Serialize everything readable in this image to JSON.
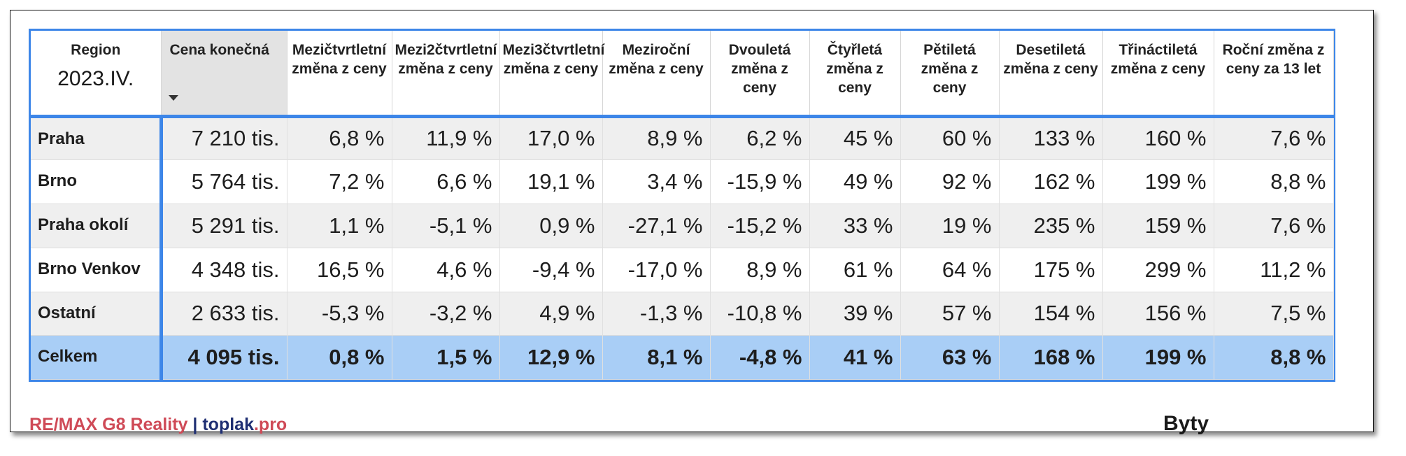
{
  "header": {
    "region": "Region",
    "period": "2023.IV.",
    "columns": [
      "Cena konečná",
      "Mezičtvrtletní změna z ceny",
      "Mezi2čtvrtletní změna z ceny",
      "Mezi3čtvrtletní změna z ceny",
      "Meziroční změna z ceny",
      "Dvouletá změna z ceny",
      "Čtyřletá změna z ceny",
      "Pětiletá změna z ceny",
      "Desetiletá změna z ceny",
      "Třináctiletá změna z ceny",
      "Roční změna z ceny za 13 let"
    ]
  },
  "rows": [
    {
      "region": "Praha",
      "values": [
        "7 210 tis.",
        "6,8 %",
        "11,9 %",
        "17,0 %",
        "8,9 %",
        "6,2 %",
        "45 %",
        "60 %",
        "133 %",
        "160 %",
        "7,6 %"
      ]
    },
    {
      "region": "Brno",
      "values": [
        "5 764 tis.",
        "7,2 %",
        "6,6 %",
        "19,1 %",
        "3,4 %",
        "-15,9 %",
        "49 %",
        "92 %",
        "162 %",
        "199 %",
        "8,8 %"
      ]
    },
    {
      "region": "Praha okolí",
      "values": [
        "5 291 tis.",
        "1,1 %",
        "-5,1 %",
        "0,9 %",
        "-27,1 %",
        "-15,2 %",
        "33 %",
        "19 %",
        "235 %",
        "159 %",
        "7,6 %"
      ]
    },
    {
      "region": "Brno Venkov",
      "values": [
        "4 348 tis.",
        "16,5 %",
        "4,6 %",
        "-9,4 %",
        "-17,0 %",
        "8,9 %",
        "61 %",
        "64 %",
        "175 %",
        "299 %",
        "11,2 %"
      ]
    },
    {
      "region": "Ostatní",
      "values": [
        "2 633 tis.",
        "-5,3 %",
        "-3,2 %",
        "4,9 %",
        "-1,3 %",
        "-10,8 %",
        "39 %",
        "57 %",
        "154 %",
        "156 %",
        "7,5 %"
      ]
    }
  ],
  "total": {
    "region": "Celkem",
    "values": [
      "4 095 tis.",
      "0,8 %",
      "1,5 %",
      "12,9 %",
      "8,1 %",
      "-4,8 %",
      "41 %",
      "63 %",
      "168 %",
      "199 %",
      "8,8 %"
    ]
  },
  "footer": {
    "brand_part1": "RE/MAX G8 Reality",
    "separator": "|",
    "brand_part2": "toplak",
    "brand_part3": ".pro",
    "label": "Byty"
  },
  "colors": {
    "accent_blue": "#3d86e8",
    "total_row": "#a9cef6",
    "brand_red": "#cf4a57",
    "brand_navy": "#1f2f73"
  }
}
